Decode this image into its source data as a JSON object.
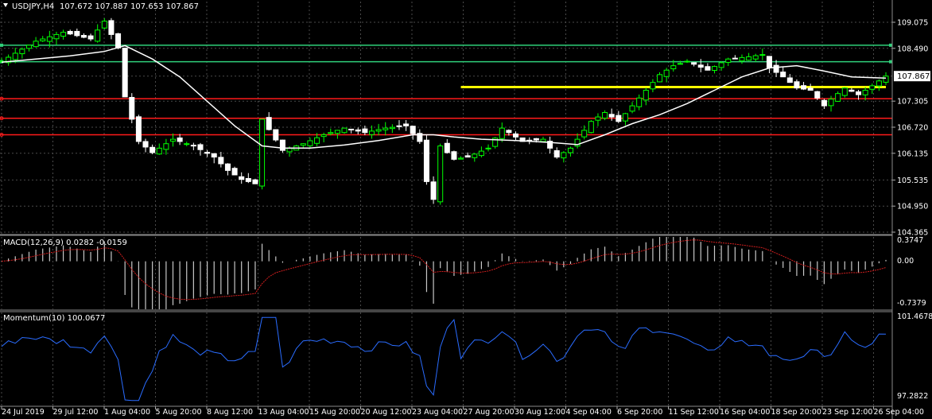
{
  "colors": {
    "background": "#000000",
    "grid": "#4a4a4a",
    "bull": "#00ff00",
    "bear": "#ffffff",
    "ma": "#ffffff",
    "resistance_green": "#2fd07a",
    "support_red": "#ff1a1a",
    "trend_yellow": "#ffff00",
    "macd_hist": "#c8c8c8",
    "macd_signal": "#d21e1e",
    "momentum": "#2a6cff",
    "price_tag_bg": "#ffffff",
    "price_tag_fg": "#000000"
  },
  "header": {
    "symbol": "USDJPY,H4",
    "ohlc": "107.672 107.887 107.653 107.867"
  },
  "price_tag": "107.867",
  "chart_data": [
    {
      "type": "candlestick",
      "title": "USDJPY,H4 107.672 107.887 107.653 107.867",
      "ylim": [
        104.365,
        109.075
      ],
      "y_ticks": [
        "109.075",
        "108.490",
        "107.867",
        "107.305",
        "106.720",
        "106.135",
        "105.535",
        "104.950",
        "104.365"
      ],
      "x_ticks": [
        "24 Jul 2019",
        "29 Jul 12:00",
        "1 Aug 04:00",
        "5 Aug 20:00",
        "8 Aug 12:00",
        "13 Aug 04:00",
        "15 Aug 20:00",
        "20 Aug 12:00",
        "23 Aug 04:00",
        "27 Aug 20:00",
        "30 Aug 12:00",
        "4 Sep 04:00",
        "6 Sep 20:00",
        "11 Sep 12:00",
        "16 Sep 04:00",
        "18 Sep 20:00",
        "23 Sep 12:00",
        "26 Sep 04:00"
      ],
      "close_path": [
        [
          0,
          108.2
        ],
        [
          5,
          108.65
        ],
        [
          9,
          108.85
        ],
        [
          13,
          108.7
        ],
        [
          15,
          109.1
        ],
        [
          17,
          108.5
        ],
        [
          18,
          107.4
        ],
        [
          20,
          106.4
        ],
        [
          22,
          106.15
        ],
        [
          25,
          106.45
        ],
        [
          28,
          106.3
        ],
        [
          31,
          106.05
        ],
        [
          33,
          105.75
        ],
        [
          35,
          105.55
        ],
        [
          37,
          105.45
        ],
        [
          38,
          106.9
        ],
        [
          41,
          106.2
        ],
        [
          44,
          106.35
        ],
        [
          47,
          106.55
        ],
        [
          50,
          106.7
        ],
        [
          53,
          106.6
        ],
        [
          56,
          106.7
        ],
        [
          59,
          106.75
        ],
        [
          61,
          106.4
        ],
        [
          62,
          105.5
        ],
        [
          63,
          105.1
        ],
        [
          64,
          106.3
        ],
        [
          66,
          106.0
        ],
        [
          68,
          106.05
        ],
        [
          71,
          106.25
        ],
        [
          73,
          106.7
        ],
        [
          76,
          106.4
        ],
        [
          79,
          106.45
        ],
        [
          81,
          106.05
        ],
        [
          83,
          106.25
        ],
        [
          86,
          106.85
        ],
        [
          88,
          107.05
        ],
        [
          90,
          106.85
        ],
        [
          92,
          107.2
        ],
        [
          94,
          107.55
        ],
        [
          96,
          107.9
        ],
        [
          98,
          108.1
        ],
        [
          100,
          108.2
        ],
        [
          103,
          108.0
        ],
        [
          106,
          108.25
        ],
        [
          109,
          108.3
        ],
        [
          111,
          108.35
        ],
        [
          112,
          108.05
        ],
        [
          114,
          107.85
        ],
        [
          116,
          107.6
        ],
        [
          118,
          107.55
        ],
        [
          120,
          107.2
        ],
        [
          121,
          107.35
        ],
        [
          123,
          107.6
        ],
        [
          125,
          107.45
        ],
        [
          127,
          107.65
        ],
        [
          129,
          107.867
        ]
      ],
      "moving_average": [
        [
          0,
          108.18
        ],
        [
          5,
          108.25
        ],
        [
          10,
          108.32
        ],
        [
          15,
          108.42
        ],
        [
          18,
          108.55
        ],
        [
          22,
          108.25
        ],
        [
          26,
          107.85
        ],
        [
          30,
          107.3
        ],
        [
          34,
          106.75
        ],
        [
          38,
          106.3
        ],
        [
          41,
          106.25
        ],
        [
          45,
          106.25
        ],
        [
          50,
          106.32
        ],
        [
          55,
          106.42
        ],
        [
          60,
          106.55
        ],
        [
          63,
          106.55
        ],
        [
          66,
          106.5
        ],
        [
          70,
          106.45
        ],
        [
          75,
          106.42
        ],
        [
          80,
          106.38
        ],
        [
          84,
          106.33
        ],
        [
          88,
          106.55
        ],
        [
          92,
          106.8
        ],
        [
          96,
          107.0
        ],
        [
          100,
          107.25
        ],
        [
          104,
          107.55
        ],
        [
          108,
          107.85
        ],
        [
          112,
          108.05
        ],
        [
          116,
          108.1
        ],
        [
          120,
          107.98
        ],
        [
          124,
          107.85
        ],
        [
          129,
          107.82
        ]
      ],
      "levels": {
        "resistance": [
          108.56,
          108.19
        ],
        "support": [
          107.36,
          106.92,
          106.55
        ],
        "trendline": {
          "start_bar": 67,
          "end_bar": 129,
          "value": 107.62
        }
      }
    },
    {
      "type": "histogram",
      "title": "MACD(12,26,9) 0.0282 -0.0159",
      "name": "MACD(12,26,9)",
      "values_text": "0.0282 -0.0159",
      "ylim": [
        -0.7379,
        0.3747
      ],
      "y_ticks": [
        "0.3747",
        "0.00",
        "-0.7379"
      ]
    },
    {
      "type": "line",
      "title": "Momentum(10) 100.0677",
      "name": "Momentum(10)",
      "values_text": "100.0677",
      "ylim": [
        97.2822,
        101.4678
      ],
      "y_ticks": [
        "101.4678",
        "97.2822"
      ]
    }
  ]
}
